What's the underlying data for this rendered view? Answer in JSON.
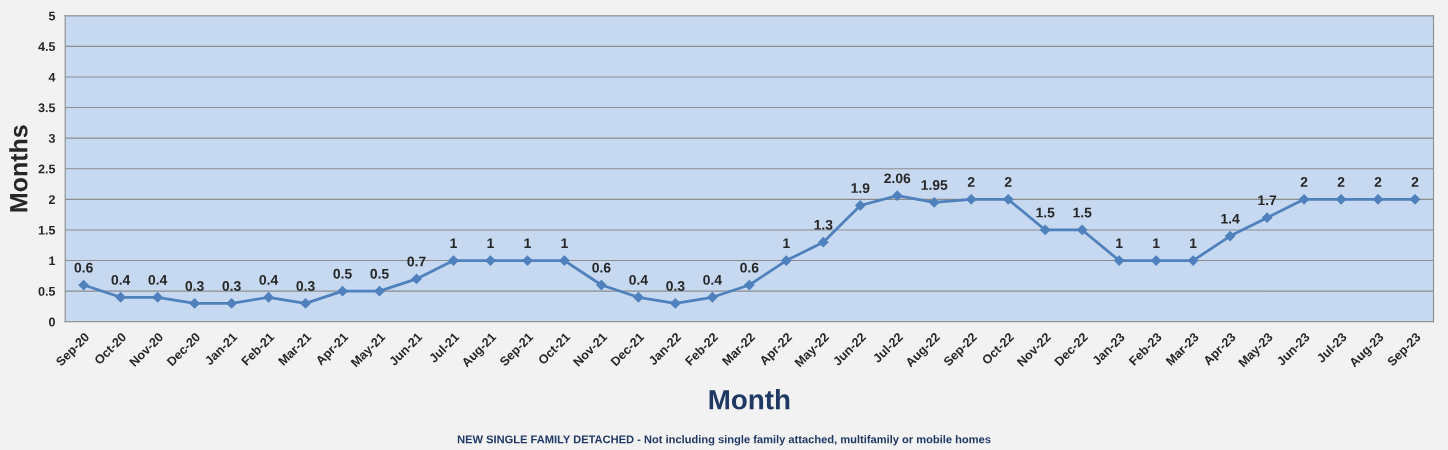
{
  "chart_data": {
    "type": "line",
    "xlabel": "Month",
    "ylabel": "Months",
    "annotations": [
      "NEW SINGLE FAMILY DETACHED - Not including single family attached, multifamily or mobile homes"
    ],
    "categories": [
      "Sep-20",
      "Oct-20",
      "Nov-20",
      "Dec-20",
      "Jan-21",
      "Feb-21",
      "Mar-21",
      "Apr-21",
      "May-21",
      "Jun-21",
      "Jul-21",
      "Aug-21",
      "Sep-21",
      "Oct-21",
      "Nov-21",
      "Dec-21",
      "Jan-22",
      "Feb-22",
      "Mar-22",
      "Apr-22",
      "May-22",
      "Jun-22",
      "Jul-22",
      "Aug-22",
      "Sep-22",
      "Oct-22",
      "Nov-22",
      "Dec-22",
      "Jan-23",
      "Feb-23",
      "Mar-23",
      "Apr-23",
      "May-23",
      "Jun-23",
      "Jul-23",
      "Aug-23",
      "Sep-23"
    ],
    "series": [
      {
        "color": "#4f81bd",
        "values": [
          0.6,
          0.4,
          0.4,
          0.3,
          0.3,
          0.4,
          0.3,
          0.5,
          0.5,
          0.7,
          1,
          1,
          1,
          1,
          0.6,
          0.4,
          0.3,
          0.4,
          0.6,
          1,
          1.3,
          1.9,
          2.06,
          1.95,
          2,
          2,
          1.5,
          1.5,
          1,
          1,
          1,
          1.4,
          1.7,
          2,
          2,
          2,
          2
        ]
      }
    ],
    "ylim": [
      0,
      5
    ],
    "yticks": [
      0,
      0.5,
      1,
      1.5,
      2,
      2.5,
      3,
      3.5,
      4,
      4.5,
      5
    ],
    "grid": "y",
    "marker": "diamond",
    "line_style": "solid",
    "data_labels": true
  }
}
